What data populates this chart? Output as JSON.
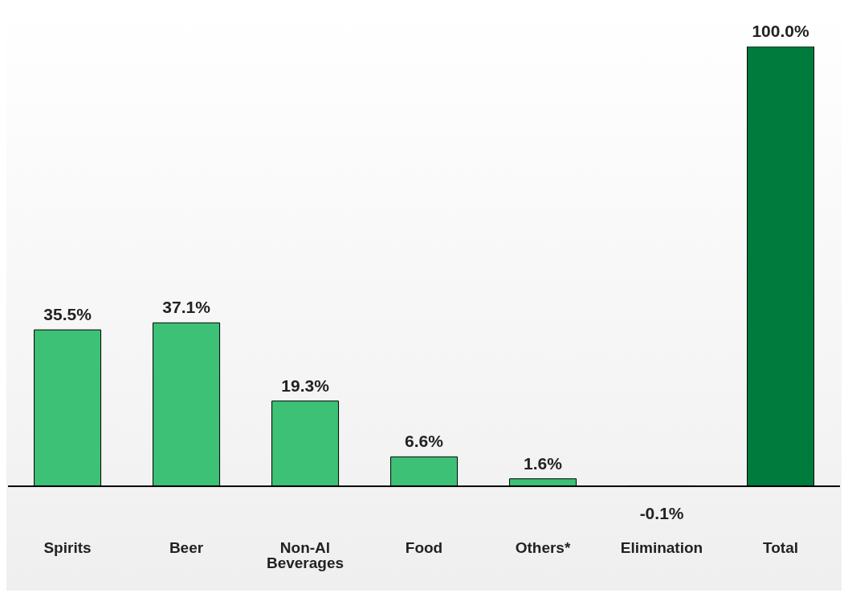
{
  "chart_data": {
    "type": "bar",
    "categories": [
      "Spirits",
      "Beer",
      "Non-Al Beverages",
      "Food",
      "Others*",
      "Elimination",
      "Total"
    ],
    "values": [
      35.5,
      37.1,
      19.3,
      6.6,
      1.6,
      -0.1,
      100.0
    ],
    "colors": [
      "#3dc176",
      "#3dc176",
      "#3dc176",
      "#3dc176",
      "#3dc176",
      "#3dc176",
      "#007b3e"
    ],
    "value_labels": [
      "35.5%",
      "37.1%",
      "19.3%",
      "6.6%",
      "1.6%",
      "-0.1%",
      "100.0%"
    ]
  }
}
